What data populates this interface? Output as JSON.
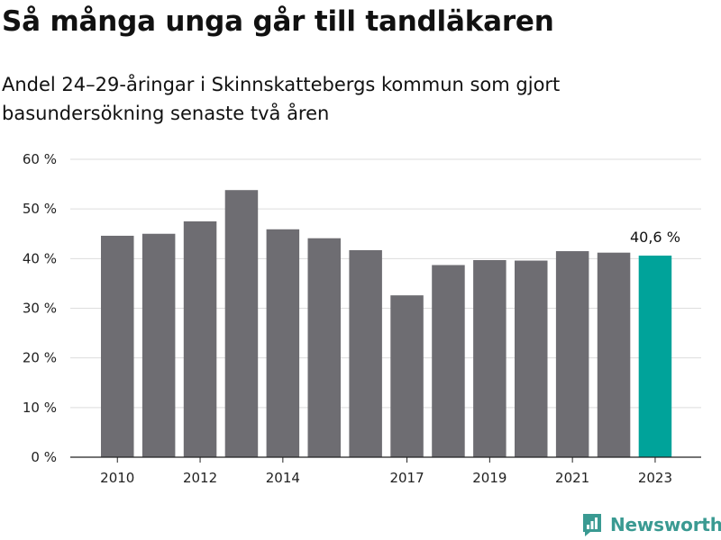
{
  "title": "Så många unga går till tandläkaren",
  "subtitle": "Andel 24–29-åringar i Skinnskattebergs kommun som gjort basundersökning senaste två åren",
  "brand": {
    "name": "Newsworthy",
    "color": "#3a9a92"
  },
  "colors": {
    "bar": "#6e6d72",
    "highlight": "#00a39a",
    "grid": "#dddddd",
    "axis": "#222222"
  },
  "chart_data": {
    "type": "bar",
    "categories": [
      "2010",
      "2011",
      "2012",
      "2013",
      "2014",
      "2015",
      "2016",
      "2017",
      "2018",
      "2019",
      "2020",
      "2021",
      "2022",
      "2023"
    ],
    "x_tick_labels": [
      "2010",
      "",
      "2012",
      "",
      "2014",
      "",
      "",
      "2017",
      "",
      "2019",
      "",
      "2021",
      "",
      "2023"
    ],
    "values": [
      44.6,
      45.0,
      47.5,
      53.8,
      45.9,
      44.1,
      41.7,
      32.6,
      38.7,
      39.7,
      39.6,
      41.5,
      41.2,
      40.6
    ],
    "highlight_index": 13,
    "highlight_label": "40,6 %",
    "y_ticks": [
      0,
      10,
      20,
      30,
      40,
      50,
      60
    ],
    "y_tick_labels": [
      "0 %",
      "10 %",
      "20 %",
      "30 %",
      "40 %",
      "50 %",
      "60 %"
    ],
    "ylim": [
      0,
      60
    ],
    "xlabel": "",
    "ylabel": "",
    "grid": true,
    "legend": "none"
  }
}
